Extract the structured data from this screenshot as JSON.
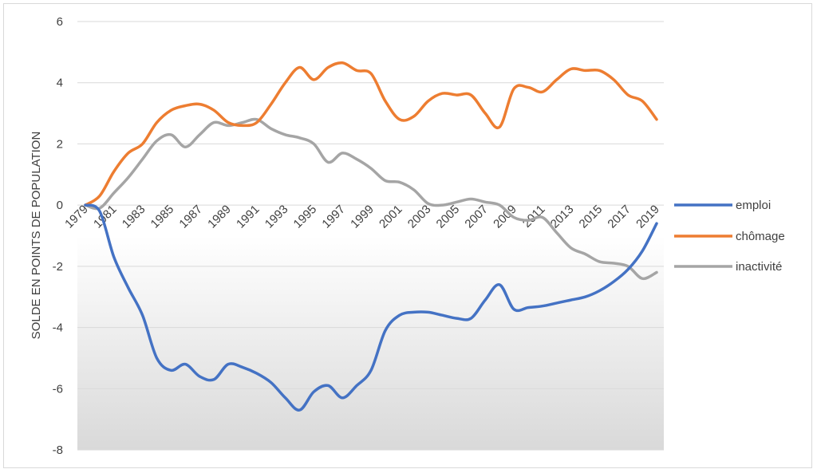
{
  "chart_data": {
    "type": "line",
    "ylabel": "SOLDE EN POINTS DE POPULATION",
    "xlabel": "",
    "ylim": [
      -8,
      6
    ],
    "yticks": [
      6,
      4,
      2,
      0,
      -2,
      -4,
      -6,
      -8
    ],
    "grid": "horizontal",
    "legend": "right",
    "x": [
      1979,
      1980,
      1981,
      1982,
      1983,
      1984,
      1985,
      1986,
      1987,
      1988,
      1989,
      1990,
      1991,
      1992,
      1993,
      1994,
      1995,
      1996,
      1997,
      1998,
      1999,
      2000,
      2001,
      2002,
      2003,
      2004,
      2005,
      2006,
      2007,
      2008,
      2009,
      2010,
      2011,
      2012,
      2013,
      2014,
      2015,
      2016,
      2017,
      2018,
      2019
    ],
    "x_tick_labels": [
      "1979",
      "1981",
      "1983",
      "1985",
      "1987",
      "1989",
      "1991",
      "1993",
      "1995",
      "1997",
      "1999",
      "2001",
      "2003",
      "2005",
      "2007",
      "2009",
      "2011",
      "2013",
      "2015",
      "2017",
      "2019"
    ],
    "series": [
      {
        "name": "emploi",
        "color": "#4472c4",
        "values": [
          0,
          -0.2,
          -1.7,
          -2.7,
          -3.6,
          -5.0,
          -5.4,
          -5.2,
          -5.6,
          -5.7,
          -5.2,
          -5.3,
          -5.5,
          -5.8,
          -6.3,
          -6.7,
          -6.1,
          -5.9,
          -6.3,
          -5.9,
          -5.4,
          -4.1,
          -3.6,
          -3.5,
          -3.5,
          -3.6,
          -3.7,
          -3.7,
          -3.1,
          -2.6,
          -3.4,
          -3.35,
          -3.3,
          -3.2,
          -3.1,
          -3.0,
          -2.8,
          -2.5,
          -2.1,
          -1.5,
          -0.6
        ]
      },
      {
        "name": "chômage",
        "color": "#ed7d31",
        "values": [
          0,
          0.3,
          1.1,
          1.7,
          2.0,
          2.7,
          3.1,
          3.25,
          3.3,
          3.1,
          2.7,
          2.6,
          2.7,
          3.3,
          4.0,
          4.5,
          4.1,
          4.5,
          4.65,
          4.4,
          4.3,
          3.4,
          2.8,
          2.9,
          3.4,
          3.65,
          3.6,
          3.6,
          3.0,
          2.55,
          3.8,
          3.85,
          3.7,
          4.1,
          4.45,
          4.4,
          4.4,
          4.1,
          3.6,
          3.4,
          2.8
        ]
      },
      {
        "name": "inactivité",
        "color": "#a5a5a5",
        "values": [
          0,
          -0.1,
          0.4,
          0.9,
          1.5,
          2.1,
          2.3,
          1.9,
          2.3,
          2.7,
          2.6,
          2.7,
          2.8,
          2.5,
          2.3,
          2.2,
          2.0,
          1.4,
          1.7,
          1.5,
          1.2,
          0.8,
          0.75,
          0.5,
          0.05,
          0.0,
          0.1,
          0.2,
          0.1,
          0.0,
          -0.4,
          -0.5,
          -0.4,
          -0.9,
          -1.4,
          -1.6,
          -1.85,
          -1.9,
          -2.0,
          -2.4,
          -2.2
        ]
      }
    ]
  }
}
